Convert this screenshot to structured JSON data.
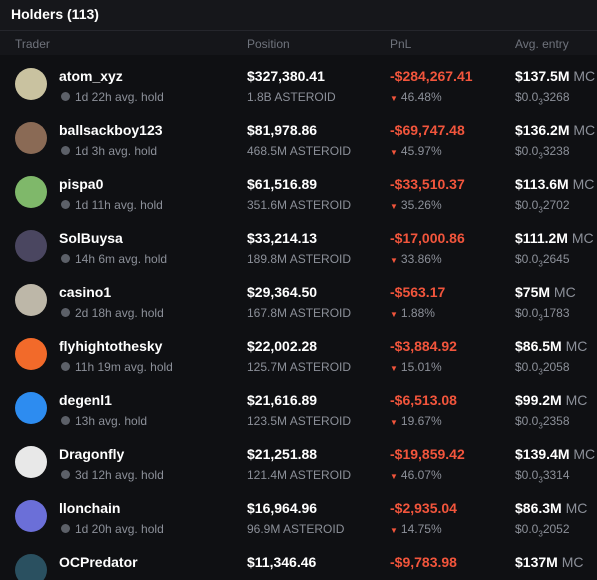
{
  "header": {
    "title": "Holders (113)"
  },
  "columns": [
    "Trader",
    "Position",
    "PnL",
    "Avg. entry"
  ],
  "rows": [
    {
      "name": "atom_xyz",
      "hold": "1d 22h avg. hold",
      "position": "$327,380.41",
      "amount": "1.8B ASTEROID",
      "pnl": "-$284,267.41",
      "pnl_pct": "46.48%",
      "entry_mc": "$137.5M",
      "mc": "MC",
      "price_prefix": "$0.0",
      "price_sub": "3",
      "price_digits": "3268"
    },
    {
      "name": "ballsackboy123",
      "hold": "1d 3h avg. hold",
      "position": "$81,978.86",
      "amount": "468.5M ASTEROID",
      "pnl": "-$69,747.48",
      "pnl_pct": "45.97%",
      "entry_mc": "$136.2M",
      "mc": "MC",
      "price_prefix": "$0.0",
      "price_sub": "3",
      "price_digits": "3238"
    },
    {
      "name": "pispa0",
      "hold": "1d 11h avg. hold",
      "position": "$61,516.89",
      "amount": "351.6M ASTEROID",
      "pnl": "-$33,510.37",
      "pnl_pct": "35.26%",
      "entry_mc": "$113.6M",
      "mc": "MC",
      "price_prefix": "$0.0",
      "price_sub": "3",
      "price_digits": "2702"
    },
    {
      "name": "SolBuysa",
      "hold": "14h 6m avg. hold",
      "position": "$33,214.13",
      "amount": "189.8M ASTEROID",
      "pnl": "-$17,000.86",
      "pnl_pct": "33.86%",
      "entry_mc": "$111.2M",
      "mc": "MC",
      "price_prefix": "$0.0",
      "price_sub": "3",
      "price_digits": "2645"
    },
    {
      "name": "casino1",
      "hold": "2d 18h avg. hold",
      "position": "$29,364.50",
      "amount": "167.8M ASTEROID",
      "pnl": "-$563.17",
      "pnl_pct": "1.88%",
      "entry_mc": "$75M",
      "mc": "MC",
      "price_prefix": "$0.0",
      "price_sub": "3",
      "price_digits": "1783"
    },
    {
      "name": "flyhightothesky",
      "hold": "11h 19m avg. hold",
      "position": "$22,002.28",
      "amount": "125.7M ASTEROID",
      "pnl": "-$3,884.92",
      "pnl_pct": "15.01%",
      "entry_mc": "$86.5M",
      "mc": "MC",
      "price_prefix": "$0.0",
      "price_sub": "3",
      "price_digits": "2058"
    },
    {
      "name": "degenl1",
      "hold": "13h avg. hold",
      "position": "$21,616.89",
      "amount": "123.5M ASTEROID",
      "pnl": "-$6,513.08",
      "pnl_pct": "19.67%",
      "entry_mc": "$99.2M",
      "mc": "MC",
      "price_prefix": "$0.0",
      "price_sub": "3",
      "price_digits": "2358"
    },
    {
      "name": "Dragonfly",
      "hold": "3d 12h avg. hold",
      "position": "$21,251.88",
      "amount": "121.4M ASTEROID",
      "pnl": "-$19,859.42",
      "pnl_pct": "46.07%",
      "entry_mc": "$139.4M",
      "mc": "MC",
      "price_prefix": "$0.0",
      "price_sub": "3",
      "price_digits": "3314"
    },
    {
      "name": "llonchain",
      "hold": "1d 20h avg. hold",
      "position": "$16,964.96",
      "amount": "96.9M ASTEROID",
      "pnl": "-$2,935.04",
      "pnl_pct": "14.75%",
      "entry_mc": "$86.3M",
      "mc": "MC",
      "price_prefix": "$0.0",
      "price_sub": "3",
      "price_digits": "2052"
    },
    {
      "name": "OCPredator",
      "position": "$11,346.46",
      "pnl": "-$9,783.98",
      "entry_mc": "$137M",
      "mc": "MC"
    }
  ]
}
